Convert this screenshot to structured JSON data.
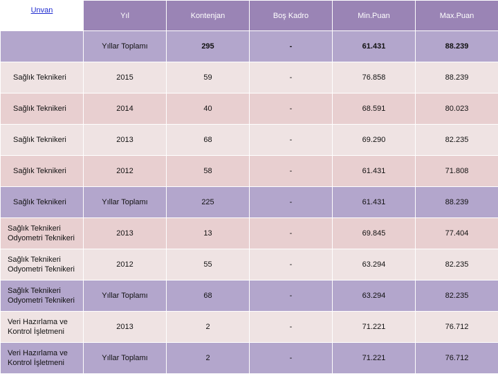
{
  "header": {
    "unvan": "Unvan",
    "yil": "Yıl",
    "kontenjan": "Kontenjan",
    "bos_kadro": "Boş Kadro",
    "min_puan": "Min.Puan",
    "max_puan": "Max.Puan"
  },
  "rows": [
    {
      "unvan": "",
      "yil": "Yıllar Toplamı",
      "kontenjan": "295",
      "bos": "-",
      "min": "61.431",
      "max": "88.239"
    },
    {
      "unvan": "Sağlık Teknikeri",
      "yil": "2015",
      "kontenjan": "59",
      "bos": "-",
      "min": "76.858",
      "max": "88.239"
    },
    {
      "unvan": "Sağlık Teknikeri",
      "yil": "2014",
      "kontenjan": "40",
      "bos": "-",
      "min": "68.591",
      "max": "80.023"
    },
    {
      "unvan": "Sağlık Teknikeri",
      "yil": "2013",
      "kontenjan": "68",
      "bos": "-",
      "min": "69.290",
      "max": "82.235"
    },
    {
      "unvan": "Sağlık Teknikeri",
      "yil": "2012",
      "kontenjan": "58",
      "bos": "-",
      "min": "61.431",
      "max": "71.808"
    },
    {
      "unvan": "Sağlık Teknikeri",
      "yil": "Yıllar Toplamı",
      "kontenjan": "225",
      "bos": "-",
      "min": "61.431",
      "max": "88.239"
    },
    {
      "unvan": "Sağlık Teknikeri Odyometri Teknikeri",
      "yil": "2013",
      "kontenjan": "13",
      "bos": "-",
      "min": "69.845",
      "max": "77.404"
    },
    {
      "unvan": "Sağlık Teknikeri Odyometri Teknikeri",
      "yil": "2012",
      "kontenjan": "55",
      "bos": "-",
      "min": "63.294",
      "max": "82.235"
    },
    {
      "unvan": "Sağlık Teknikeri Odyometri Teknikeri",
      "yil": "Yıllar Toplamı",
      "kontenjan": "68",
      "bos": "-",
      "min": "63.294",
      "max": "82.235"
    },
    {
      "unvan": "Veri Hazırlama ve Kontrol İşletmeni",
      "yil": "2013",
      "kontenjan": "2",
      "bos": "-",
      "min": "71.221",
      "max": "76.712"
    },
    {
      "unvan": "Veri Hazırlama ve Kontrol İşletmeni",
      "yil": "Yıllar Toplamı",
      "kontenjan": "2",
      "bos": "-",
      "min": "71.221",
      "max": "76.712"
    }
  ]
}
